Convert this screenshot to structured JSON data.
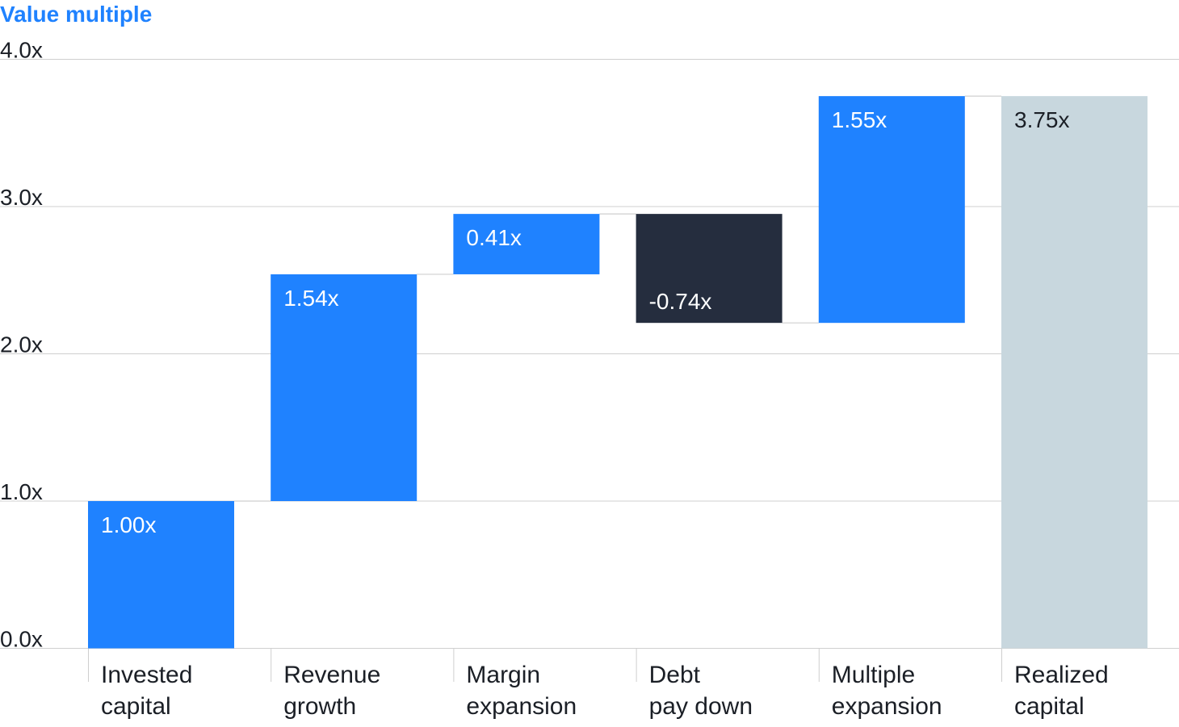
{
  "chart_data": {
    "type": "waterfall",
    "ylabel": "Value multiple",
    "ylim": [
      0,
      4
    ],
    "yticks": [
      "0.0x",
      "1.0x",
      "2.0x",
      "3.0x",
      "4.0x"
    ],
    "grid": true,
    "categories": [
      [
        "Invested",
        "capital"
      ],
      [
        "Revenue",
        "growth"
      ],
      [
        "Margin",
        "expansion"
      ],
      [
        "Debt",
        "pay down"
      ],
      [
        "Multiple",
        "expansion"
      ],
      [
        "Realized",
        "capital"
      ]
    ],
    "bars": [
      {
        "start": 0,
        "end": 1.0,
        "label": "1.00x",
        "kind": "total"
      },
      {
        "start": 1.0,
        "end": 2.54,
        "label": "1.54x",
        "kind": "increase"
      },
      {
        "start": 2.54,
        "end": 2.95,
        "label": "0.41x",
        "kind": "increase"
      },
      {
        "start": 2.95,
        "end": 2.21,
        "label": "-0.74x",
        "kind": "decrease"
      },
      {
        "start": 2.21,
        "end": 3.75,
        "label": "1.55x",
        "kind": "increase"
      },
      {
        "start": 0,
        "end": 3.75,
        "label": "3.75x",
        "kind": "result"
      }
    ],
    "colors": {
      "total": "#1f82ff",
      "increase": "#1f82ff",
      "decrease": "#252d3e",
      "result": "#c8d7de",
      "grid": "#cfcfcf",
      "connector": "#cfcfcf"
    }
  }
}
